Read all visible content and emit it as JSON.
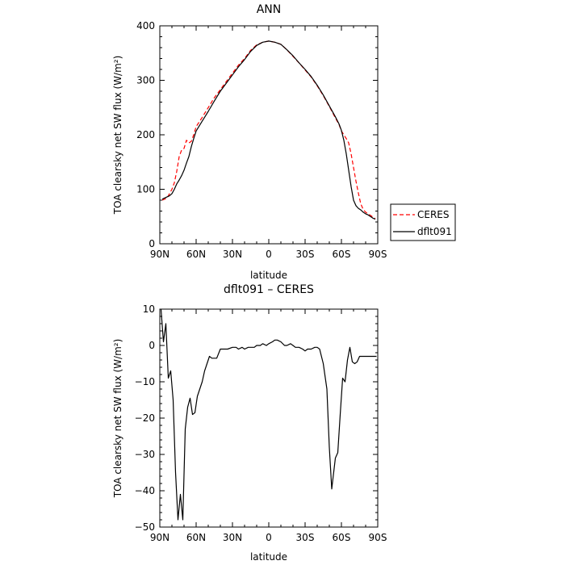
{
  "chart_data": [
    {
      "type": "line",
      "title": "ANN",
      "xlabel": "latitude",
      "ylabel": "TOA clearsky net SW flux (W/m²)",
      "xlim": [
        -90,
        90
      ],
      "ylim": [
        0,
        400
      ],
      "xticks": [
        -90,
        -60,
        -30,
        0,
        30,
        60,
        90
      ],
      "xtick_labels": [
        "90N",
        "60N",
        "30N",
        "0",
        "30S",
        "60S",
        "90S"
      ],
      "yticks": [
        0,
        100,
        200,
        300,
        400
      ],
      "ytick_labels": [
        "0",
        "100",
        "200",
        "300",
        "400"
      ],
      "grid": false,
      "legend": {
        "position": "right",
        "entries": [
          "CERES",
          "dflt091"
        ]
      },
      "series": [
        {
          "name": "CERES",
          "color": "#ff0000",
          "dash": "dashed",
          "x": [
            -88,
            -86,
            -84,
            -82,
            -80,
            -78,
            -76,
            -74,
            -72,
            -70,
            -68,
            -66,
            -64,
            -62,
            -60,
            -55,
            -50,
            -45,
            -40,
            -35,
            -30,
            -25,
            -20,
            -15,
            -10,
            -5,
            0,
            5,
            10,
            15,
            20,
            25,
            30,
            35,
            40,
            45,
            50,
            55,
            58,
            60,
            62,
            64,
            66,
            68,
            70,
            72,
            74,
            76,
            78,
            80,
            82,
            84,
            86,
            88
          ],
          "y": [
            80,
            82,
            84,
            92,
            100,
            112,
            133,
            160,
            172,
            175,
            190,
            185,
            188,
            200,
            215,
            232,
            250,
            268,
            283,
            298,
            313,
            328,
            340,
            355,
            365,
            370,
            372,
            370,
            366,
            356,
            344,
            332,
            319,
            306,
            290,
            272,
            252,
            231,
            219,
            207,
            200,
            193,
            185,
            165,
            140,
            115,
            93,
            73,
            63,
            58,
            55,
            52,
            49,
            46
          ]
        },
        {
          "name": "dflt091",
          "color": "#000000",
          "dash": "solid",
          "x": [
            -88,
            -86,
            -84,
            -82,
            -80,
            -78,
            -76,
            -74,
            -72,
            -70,
            -68,
            -66,
            -64,
            -62,
            -60,
            -55,
            -50,
            -45,
            -40,
            -35,
            -30,
            -25,
            -20,
            -15,
            -10,
            -5,
            0,
            5,
            10,
            15,
            20,
            25,
            30,
            35,
            40,
            45,
            50,
            55,
            58,
            60,
            62,
            64,
            66,
            68,
            70,
            72,
            74,
            76,
            78,
            80,
            82,
            84,
            86,
            88
          ],
          "y": [
            82,
            84,
            86,
            88,
            92,
            100,
            110,
            117,
            125,
            135,
            148,
            160,
            178,
            193,
            207,
            225,
            243,
            262,
            280,
            295,
            310,
            325,
            338,
            353,
            364,
            370,
            372,
            370,
            366,
            356,
            345,
            332,
            320,
            307,
            291,
            273,
            253,
            233,
            220,
            208,
            190,
            165,
            135,
            105,
            80,
            70,
            65,
            62,
            58,
            55,
            53,
            50,
            47,
            45
          ]
        }
      ]
    },
    {
      "type": "line",
      "title": "dflt091 – CERES",
      "xlabel": "latitude",
      "ylabel": "TOA clearsky net SW flux (W/m²)",
      "xlim": [
        -90,
        90
      ],
      "ylim": [
        -50,
        10
      ],
      "xticks": [
        -90,
        -60,
        -30,
        0,
        30,
        60,
        90
      ],
      "xtick_labels": [
        "90N",
        "60N",
        "30N",
        "0",
        "30S",
        "60S",
        "90S"
      ],
      "yticks": [
        -50,
        -40,
        -30,
        -20,
        -10,
        0,
        10
      ],
      "ytick_labels": [
        "−50",
        "−40",
        "−30",
        "−20",
        "−10",
        "0",
        "10"
      ],
      "grid": false,
      "series": [
        {
          "color": "#000000",
          "dash": "solid",
          "x": [
            -89,
            -87,
            -85,
            -83,
            -81,
            -79,
            -77,
            -75,
            -73,
            -71,
            -69,
            -67,
            -65,
            -63,
            -61,
            -59,
            -57,
            -55,
            -53,
            -51,
            -49,
            -47,
            -45,
            -43,
            -40,
            -37,
            -34,
            -30,
            -27,
            -25,
            -22,
            -20,
            -17,
            -15,
            -12,
            -10,
            -7,
            -5,
            -2,
            0,
            3,
            5,
            7,
            10,
            13,
            15,
            18,
            20,
            22,
            25,
            28,
            30,
            32,
            35,
            38,
            40,
            42,
            45,
            48,
            50,
            52,
            55,
            57,
            59,
            61,
            63,
            65,
            67,
            69,
            71,
            73,
            75,
            77,
            79,
            81,
            83,
            85,
            87,
            89
          ],
          "y": [
            10,
            1,
            6,
            -9,
            -7,
            -15,
            -35,
            -48,
            -41,
            -48,
            -23,
            -17,
            -14.5,
            -19,
            -18.5,
            -14,
            -12,
            -10,
            -7,
            -5,
            -3,
            -3.5,
            -3.5,
            -3.5,
            -1,
            -1,
            -1,
            -0.5,
            -0.5,
            -1,
            -0.5,
            -1,
            -0.5,
            -0.5,
            -0.5,
            0,
            0,
            0.5,
            0,
            0.5,
            1,
            1.5,
            1.5,
            1,
            0,
            0,
            0.5,
            0,
            -0.5,
            -0.5,
            -1,
            -1.5,
            -1,
            -1,
            -0.5,
            -0.5,
            -1,
            -5,
            -12,
            -28,
            -39.5,
            -31,
            -29.5,
            -19,
            -9,
            -10,
            -4,
            -0.5,
            -4.5,
            -5,
            -4.5,
            -3,
            -3,
            -3,
            -3,
            -3,
            -3,
            -3,
            -3
          ]
        }
      ]
    }
  ]
}
